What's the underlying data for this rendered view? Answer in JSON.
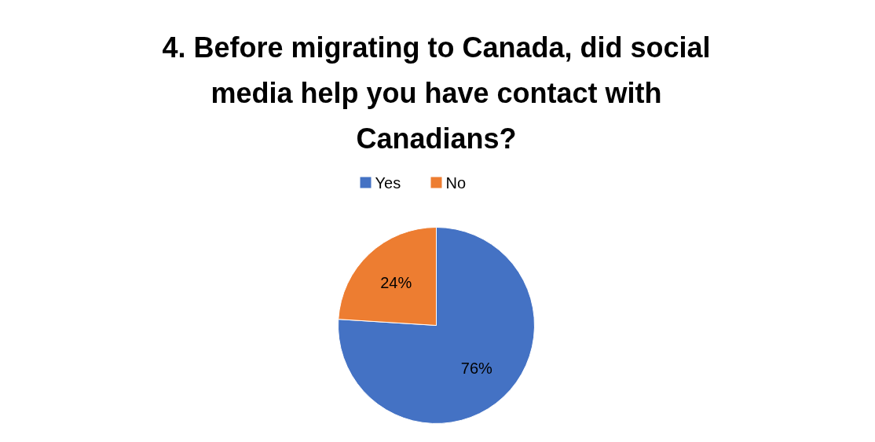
{
  "chart_data": {
    "type": "pie",
    "title": "4. Before migrating to Canada, did social media help you have contact with Canadians?",
    "categories": [
      "Yes",
      "No"
    ],
    "values": [
      76,
      24
    ],
    "value_labels": [
      "76%",
      "24%"
    ],
    "colors": [
      "#4472c4",
      "#ed7d31"
    ],
    "legend": "top"
  }
}
